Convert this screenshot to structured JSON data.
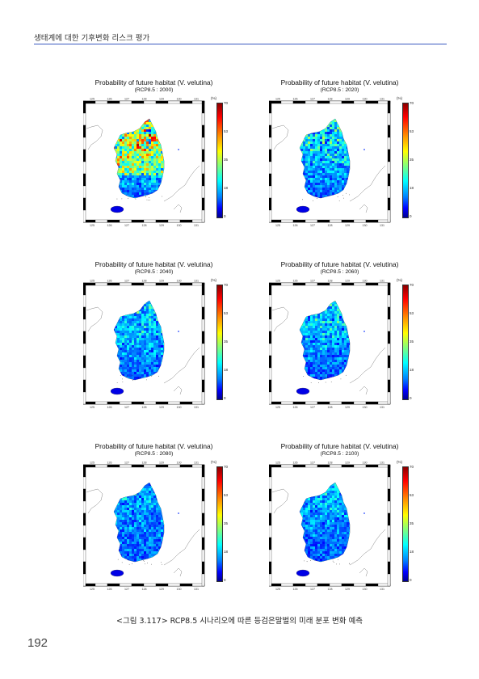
{
  "header": {
    "running_title": "생태계에 대한 기후변화 리스크 평가"
  },
  "figure": {
    "panels": [
      {
        "title": "Probability of future habitat (V. velutina)",
        "subtitle": "(RCP8.5 : 2000)",
        "level": 0.75
      },
      {
        "title": "Probability of future habitat (V. velutina)",
        "subtitle": "(RCP8.5 : 2020)",
        "level": 0.45
      },
      {
        "title": "Probability of future habitat (V. velutina)",
        "subtitle": "(RCP8.5 : 2040)",
        "level": 0.33
      },
      {
        "title": "Probability of future habitat (V. velutina)",
        "subtitle": "(RCP8.5 : 2060)",
        "level": 0.33
      },
      {
        "title": "Probability of future habitat (V. velutina)",
        "subtitle": "(RCP8.5 : 2080)",
        "level": 0.2
      },
      {
        "title": "Probability of future habitat (V. velutina)",
        "subtitle": "(RCP8.5 : 2100)",
        "level": 0.22
      }
    ],
    "lon_ticks": [
      "125",
      "126",
      "127",
      "128",
      "129",
      "130",
      "131"
    ],
    "colorbar": {
      "unit": "(%)",
      "ticks": [
        "70",
        "53",
        "35",
        "18",
        "0"
      ]
    },
    "caption": "<그림 3.117> RCP8.5 시나리오에 따른 등검은말벌의 미래 분포 변화 예측"
  },
  "footer": {
    "page_number": "192"
  }
}
